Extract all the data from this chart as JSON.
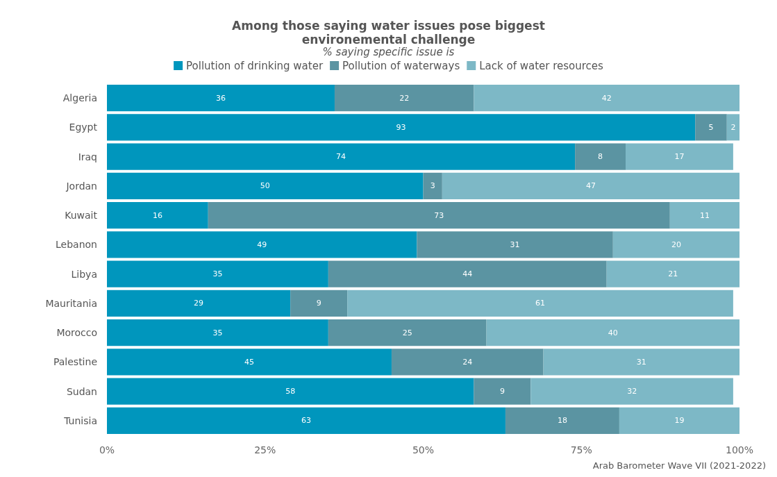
{
  "chart_data": {
    "type": "bar",
    "orientation": "horizontal",
    "stacked": true,
    "title": "Among those saying water issues pose biggest\nenvironemental challenge",
    "subtitle": "% saying specific issue is",
    "annotations": [
      "Arab Barometer Wave VII (2021-2022)"
    ],
    "categories": [
      "Algeria",
      "Egypt",
      "Iraq",
      "Jordan",
      "Kuwait",
      "Lebanon",
      "Libya",
      "Mauritania",
      "Morocco",
      "Palestine",
      "Sudan",
      "Tunisia"
    ],
    "series": [
      {
        "name": "Pollution of drinking water",
        "color": "#0096bd",
        "values": [
          36,
          93,
          74,
          50,
          16,
          49,
          35,
          29,
          35,
          45,
          58,
          63
        ]
      },
      {
        "name": "Pollution of waterways",
        "color": "#5b94a2",
        "values": [
          22,
          5,
          8,
          3,
          73,
          31,
          44,
          9,
          25,
          24,
          9,
          18
        ]
      },
      {
        "name": "Lack of water resources",
        "color": "#7db8c6",
        "values": [
          42,
          2,
          17,
          47,
          11,
          20,
          21,
          61,
          40,
          31,
          32,
          19
        ]
      }
    ],
    "xlim": [
      0,
      100
    ],
    "xticks": [
      {
        "value": 0,
        "label": "0%"
      },
      {
        "value": 25,
        "label": "25%"
      },
      {
        "value": 50,
        "label": "50%"
      },
      {
        "value": 75,
        "label": "75%"
      },
      {
        "value": 100,
        "label": "100%"
      }
    ],
    "data_labels": true,
    "legend": "top",
    "grid": false
  }
}
